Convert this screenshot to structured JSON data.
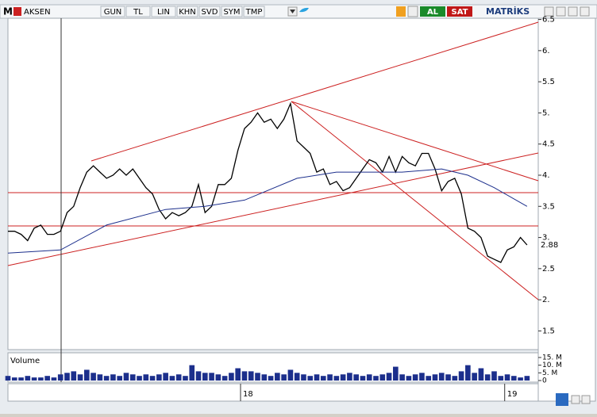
{
  "toolbar": {
    "logo": "M",
    "symbol": "AKSEN",
    "buttons": [
      "GUN",
      "TL",
      "LIN",
      "KHN",
      "SVD",
      "SYM",
      "TMP"
    ],
    "buy": "AL",
    "sell": "SAT",
    "brand": "MATRİKS"
  },
  "chart_data": {
    "type": "line",
    "x": [
      0,
      1,
      2,
      3,
      4,
      5,
      6,
      7,
      8,
      9,
      10,
      11,
      12,
      13,
      14,
      15,
      16,
      17,
      18,
      19,
      20,
      21,
      22,
      23,
      24,
      25,
      26,
      27,
      28,
      29,
      30,
      31,
      32,
      33,
      34,
      35,
      36,
      37,
      38,
      39,
      40,
      41,
      42,
      43,
      44,
      45,
      46,
      47,
      48,
      49,
      50,
      51,
      52,
      53,
      54,
      55,
      56,
      57,
      58,
      59,
      60,
      61,
      62,
      63,
      64,
      65,
      66,
      67,
      68,
      69,
      70,
      71,
      72,
      73,
      74,
      75,
      76,
      77,
      78,
      79
    ],
    "series": [
      {
        "color": "#000000",
        "values": [
          3.1,
          3.1,
          3.05,
          2.95,
          3.15,
          3.2,
          3.05,
          3.05,
          3.1,
          3.4,
          3.5,
          3.8,
          4.05,
          4.15,
          4.05,
          3.95,
          4.0,
          4.1,
          4.0,
          4.1,
          3.95,
          3.8,
          3.7,
          3.45,
          3.3,
          3.4,
          3.35,
          3.4,
          3.5,
          3.85,
          3.4,
          3.5,
          3.85,
          3.85,
          3.95,
          4.4,
          4.75,
          4.85,
          5.0,
          4.85,
          4.9,
          4.75,
          4.9,
          5.15,
          4.55,
          4.45,
          4.35,
          4.05,
          4.1,
          3.85,
          3.9,
          3.75,
          3.8,
          3.95,
          4.1,
          4.25,
          4.2,
          4.05,
          4.3,
          4.05,
          4.3,
          4.2,
          4.15,
          4.35,
          4.35,
          4.1,
          3.75,
          3.9,
          3.95,
          3.7,
          3.15,
          3.1,
          3.0,
          2.7,
          2.65,
          2.6,
          2.8,
          2.85,
          3.0,
          2.88
        ]
      }
    ],
    "moving_average": {
      "color": "#1c2f8c",
      "x": [
        0,
        8,
        15,
        24,
        30,
        36,
        44,
        50,
        60,
        66,
        70,
        74,
        79
      ],
      "values": [
        2.75,
        2.8,
        3.2,
        3.45,
        3.5,
        3.6,
        3.95,
        4.05,
        4.05,
        4.1,
        4.0,
        3.8,
        3.5
      ]
    },
    "xlim": [
      0,
      79.5
    ],
    "xticks": [
      {
        "value": 35.4,
        "label": "18"
      },
      {
        "value": 75.6,
        "label": "19"
      }
    ],
    "ylim": [
      1.2,
      6.52
    ],
    "yticks": [
      {
        "value": 1.5,
        "label": "1.5"
      },
      {
        "value": 2,
        "label": "2."
      },
      {
        "value": 2.5,
        "label": "2.5"
      },
      {
        "value": 3,
        "label": "3."
      },
      {
        "value": 3.5,
        "label": "3.5"
      },
      {
        "value": 4,
        "label": "4."
      },
      {
        "value": 4.5,
        "label": "4.5"
      },
      {
        "value": 5,
        "label": "5."
      },
      {
        "value": 5.5,
        "label": "5.5"
      },
      {
        "value": 6,
        "label": "6."
      },
      {
        "value": 6.5,
        "label": "6.5"
      }
    ],
    "volume": {
      "title": "Volume",
      "color": "#1c2f8c",
      "values": [
        3,
        2,
        2,
        3,
        2,
        2,
        3,
        2,
        4,
        5,
        6,
        4,
        7,
        5,
        4,
        3,
        4,
        3,
        5,
        4,
        3,
        4,
        3,
        4,
        5,
        3,
        4,
        3,
        10,
        6,
        5,
        5,
        4,
        3,
        5,
        8,
        6,
        6,
        5,
        4,
        3,
        5,
        4,
        7,
        5,
        4,
        3,
        4,
        3,
        4,
        3,
        4,
        5,
        4,
        3,
        4,
        3,
        4,
        5,
        9,
        4,
        3,
        4,
        5,
        3,
        4,
        5,
        4,
        3,
        6,
        10,
        5,
        8,
        4,
        6,
        3,
        4,
        3,
        2,
        3
      ],
      "ylim": [
        0,
        16
      ],
      "yticks": [
        {
          "value": 0,
          "label": "0"
        },
        {
          "value": 5,
          "label": "5. M"
        },
        {
          "value": 10,
          "label": "10. M"
        },
        {
          "value": 15,
          "label": "15. M"
        }
      ]
    }
  }
}
